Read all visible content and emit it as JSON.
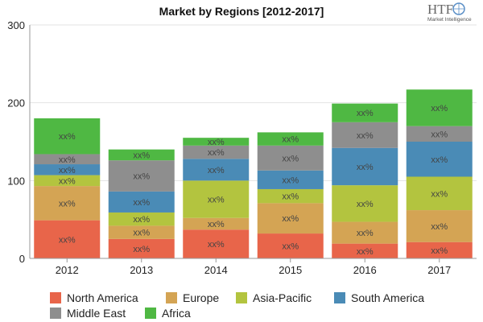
{
  "chart_data": {
    "type": "bar",
    "stacked": true,
    "title": "Market by Regions [2012-2017]",
    "xlabel": "",
    "ylabel": "",
    "categories": [
      "2012",
      "2013",
      "2014",
      "2015",
      "2016",
      "2017"
    ],
    "ylim": [
      0,
      300
    ],
    "yticks": [
      0,
      100,
      200,
      300
    ],
    "grid": true,
    "legend_position": "bottom",
    "segment_label": "xx%",
    "series": [
      {
        "name": "North America",
        "color": "#e8654a",
        "values": [
          49,
          25,
          37,
          32,
          19,
          21
        ]
      },
      {
        "name": "Europe",
        "color": "#d4a454",
        "values": [
          44,
          17,
          15,
          39,
          28,
          41
        ]
      },
      {
        "name": "Asia-Pacific",
        "color": "#b3c43f",
        "values": [
          14,
          17,
          48,
          18,
          47,
          43
        ]
      },
      {
        "name": "South America",
        "color": "#4a8bb6",
        "values": [
          14,
          27,
          28,
          24,
          48,
          45
        ]
      },
      {
        "name": "Middle East",
        "color": "#8e8e8e",
        "values": [
          13,
          40,
          17,
          32,
          33,
          20
        ]
      },
      {
        "name": "Africa",
        "color": "#4fb843",
        "values": [
          46,
          14,
          10,
          17,
          24,
          47
        ]
      }
    ]
  },
  "logo": {
    "text": "HTF",
    "subtext": "Market Intelligence"
  }
}
